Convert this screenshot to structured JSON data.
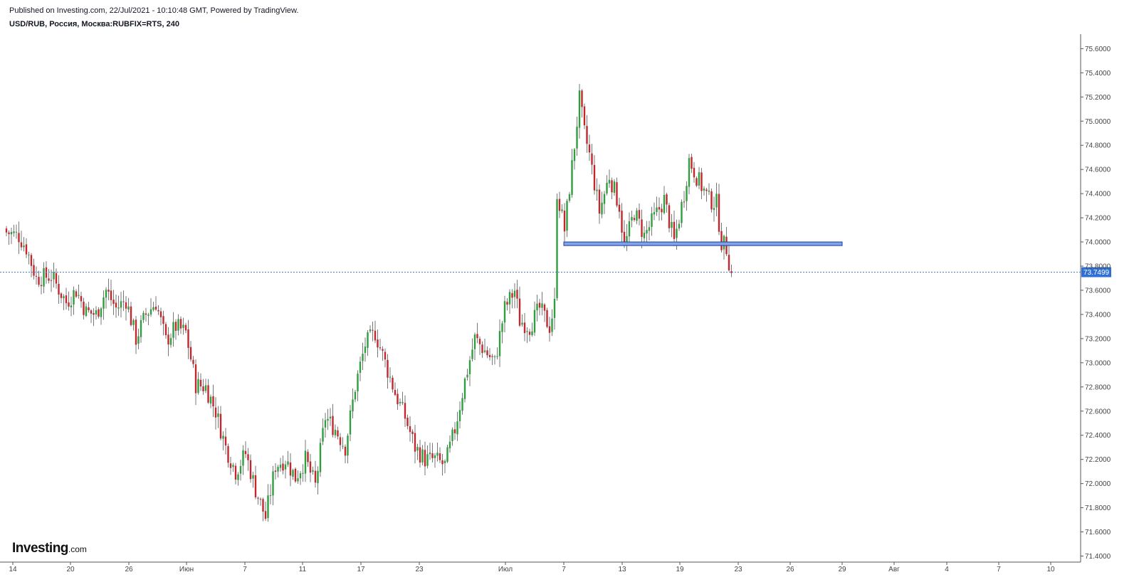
{
  "header": {
    "published": "Published on Investing.com, 22/Jul/2021 - 10:10:48 GMT, Powered by TradingView.",
    "symbol": "USD/RUB, Россия, Москва:RUBFIX=RTS, 240"
  },
  "logo": {
    "main": "Investing",
    "domain": ".com"
  },
  "colors": {
    "up": "#2e9e3e",
    "down": "#c1272d",
    "wick": "#777777",
    "price_line": "#4a7fd6",
    "price_label_bg": "#2f6fd6",
    "zone_fill": "#7fa3e6",
    "zone_stroke": "#1f3f9a"
  },
  "chart_data": {
    "type": "candlestick",
    "title": "",
    "xlabel": "",
    "ylabel": "",
    "ylim": [
      71.35,
      75.72
    ],
    "y_ticks": [
      "75.6000",
      "75.4000",
      "75.2000",
      "75.0000",
      "74.8000",
      "74.6000",
      "74.4000",
      "74.2000",
      "74.0000",
      "73.8000",
      "73.6000",
      "73.4000",
      "73.2000",
      "73.0000",
      "72.8000",
      "72.6000",
      "72.4000",
      "72.2000",
      "72.0000",
      "71.8000",
      "71.6000",
      "71.4000"
    ],
    "x_ticks": [
      "14",
      "20",
      "26",
      "Июн",
      "7",
      "11",
      "17",
      "23",
      "Июл",
      "7",
      "13",
      "19",
      "23",
      "26",
      "29",
      "Авг",
      "4",
      "7",
      "10"
    ],
    "current_price": "73.7499",
    "current_price_value": 73.7499,
    "support_zone": [
      73.97,
      74.0
    ],
    "anchors": [
      {
        "i": 0,
        "v": 74.08
      },
      {
        "i": 5,
        "v": 74.05
      },
      {
        "i": 8,
        "v": 73.95
      },
      {
        "i": 12,
        "v": 73.7
      },
      {
        "i": 18,
        "v": 73.72
      },
      {
        "i": 24,
        "v": 73.5
      },
      {
        "i": 28,
        "v": 73.6
      },
      {
        "i": 32,
        "v": 73.42
      },
      {
        "i": 36,
        "v": 73.4
      },
      {
        "i": 40,
        "v": 73.6
      },
      {
        "i": 44,
        "v": 73.45
      },
      {
        "i": 48,
        "v": 73.52
      },
      {
        "i": 52,
        "v": 73.2
      },
      {
        "i": 56,
        "v": 73.4
      },
      {
        "i": 60,
        "v": 73.5
      },
      {
        "i": 64,
        "v": 73.18
      },
      {
        "i": 68,
        "v": 73.3
      },
      {
        "i": 72,
        "v": 73.25
      },
      {
        "i": 76,
        "v": 72.82
      },
      {
        "i": 80,
        "v": 72.8
      },
      {
        "i": 84,
        "v": 72.6
      },
      {
        "i": 88,
        "v": 72.3
      },
      {
        "i": 92,
        "v": 72.1
      },
      {
        "i": 96,
        "v": 72.25
      },
      {
        "i": 100,
        "v": 71.95
      },
      {
        "i": 104,
        "v": 71.72
      },
      {
        "i": 108,
        "v": 72.15
      },
      {
        "i": 112,
        "v": 72.2
      },
      {
        "i": 116,
        "v": 72.05
      },
      {
        "i": 120,
        "v": 72.2
      },
      {
        "i": 124,
        "v": 71.98
      },
      {
        "i": 128,
        "v": 72.55
      },
      {
        "i": 132,
        "v": 72.45
      },
      {
        "i": 136,
        "v": 72.3
      },
      {
        "i": 140,
        "v": 72.8
      },
      {
        "i": 144,
        "v": 73.15
      },
      {
        "i": 148,
        "v": 73.25
      },
      {
        "i": 152,
        "v": 73.0
      },
      {
        "i": 156,
        "v": 72.75
      },
      {
        "i": 160,
        "v": 72.55
      },
      {
        "i": 164,
        "v": 72.3
      },
      {
        "i": 168,
        "v": 72.2
      },
      {
        "i": 172,
        "v": 72.2
      },
      {
        "i": 176,
        "v": 72.15
      },
      {
        "i": 180,
        "v": 72.45
      },
      {
        "i": 184,
        "v": 72.85
      },
      {
        "i": 188,
        "v": 73.2
      },
      {
        "i": 192,
        "v": 73.1
      },
      {
        "i": 196,
        "v": 73.0
      },
      {
        "i": 200,
        "v": 73.45
      },
      {
        "i": 204,
        "v": 73.6
      },
      {
        "i": 206,
        "v": 73.35
      },
      {
        "i": 210,
        "v": 73.3
      },
      {
        "i": 214,
        "v": 73.45
      },
      {
        "i": 218,
        "v": 73.3
      },
      {
        "i": 220,
        "v": 73.48
      },
      {
        "i": 221,
        "v": 74.42
      },
      {
        "i": 224,
        "v": 74.1
      },
      {
        "i": 228,
        "v": 74.8
      },
      {
        "i": 230,
        "v": 75.18
      },
      {
        "i": 232,
        "v": 74.9
      },
      {
        "i": 234,
        "v": 74.72
      },
      {
        "i": 238,
        "v": 74.25
      },
      {
        "i": 242,
        "v": 74.55
      },
      {
        "i": 246,
        "v": 74.3
      },
      {
        "i": 248,
        "v": 73.95
      },
      {
        "i": 252,
        "v": 74.25
      },
      {
        "i": 256,
        "v": 74.05
      },
      {
        "i": 260,
        "v": 74.2
      },
      {
        "i": 264,
        "v": 74.35
      },
      {
        "i": 268,
        "v": 74.0
      },
      {
        "i": 272,
        "v": 74.4
      },
      {
        "i": 274,
        "v": 74.68
      },
      {
        "i": 278,
        "v": 74.5
      },
      {
        "i": 282,
        "v": 74.35
      },
      {
        "i": 285,
        "v": 74.32
      },
      {
        "i": 287,
        "v": 74.0
      },
      {
        "i": 289,
        "v": 73.95
      },
      {
        "i": 291,
        "v": 73.73
      }
    ]
  }
}
